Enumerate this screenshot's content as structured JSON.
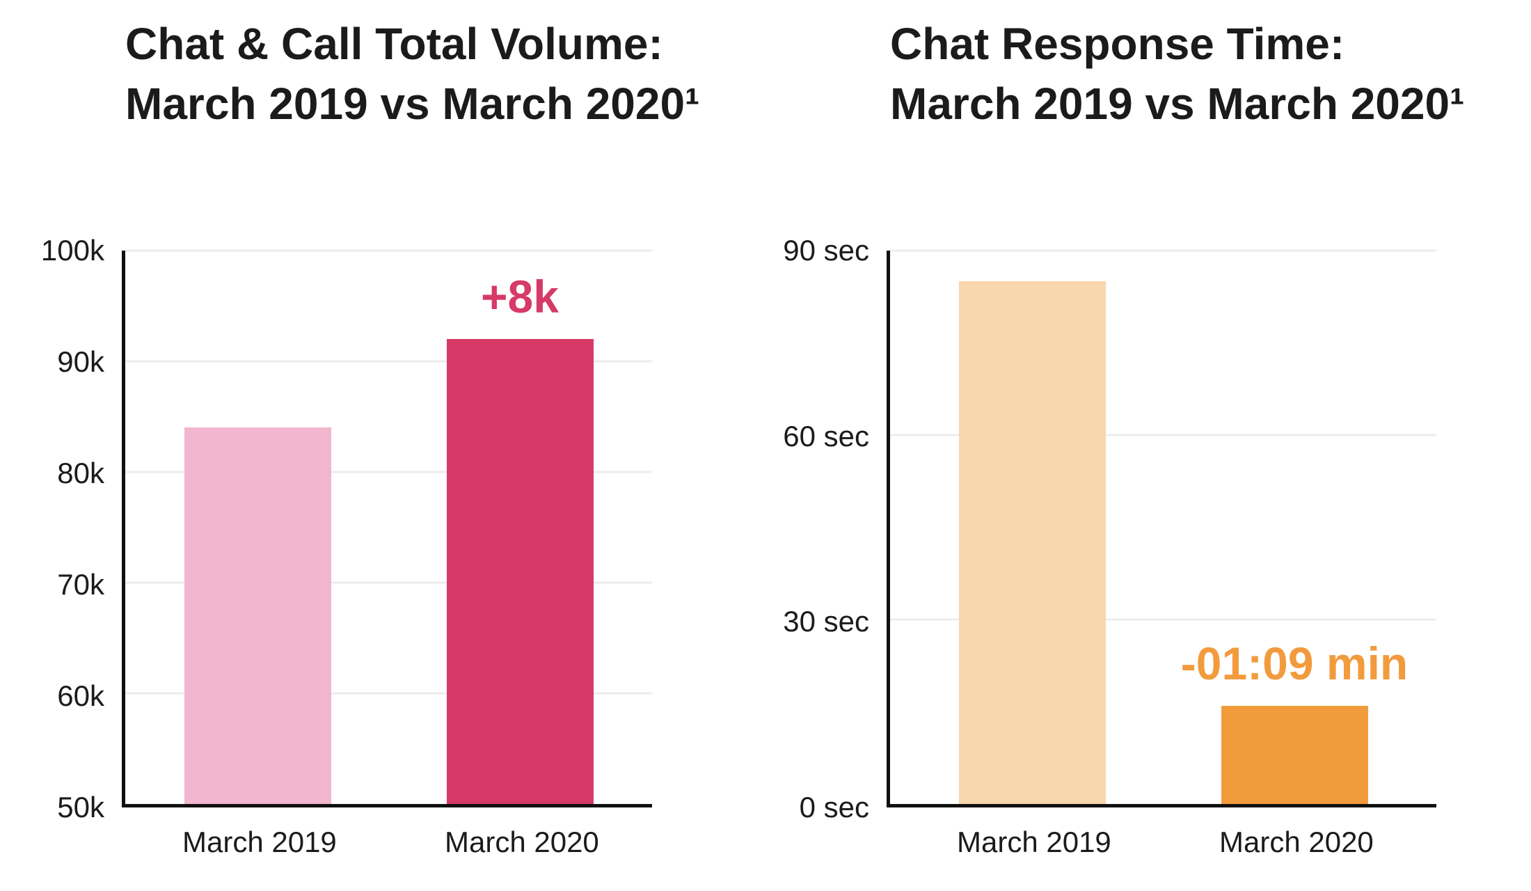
{
  "theme": {
    "background": "#ffffff",
    "text": "#1b1b1b",
    "axis": "#111111",
    "grid": "#ececec"
  },
  "chart_data": [
    {
      "type": "bar",
      "title": "Chat & Call Total Volume: March 2019 vs March 2020¹",
      "title_lines": [
        "Chat & Call Total Volume:",
        "March 2019 vs March 2020¹"
      ],
      "categories": [
        "March 2019",
        "March 2020"
      ],
      "values": [
        84000,
        92000
      ],
      "ylim": [
        50000,
        100000
      ],
      "yticks": [
        {
          "value": 50000,
          "label": "50k"
        },
        {
          "value": 60000,
          "label": "60k"
        },
        {
          "value": 70000,
          "label": "70k"
        },
        {
          "value": 80000,
          "label": "80k"
        },
        {
          "value": 90000,
          "label": "90k"
        },
        {
          "value": 100000,
          "label": "100k"
        }
      ],
      "bar_colors": [
        "#F3B6CF",
        "#D63A67"
      ],
      "annotation": {
        "text": "+8k",
        "bar_index": 1,
        "color": "#D63A67"
      },
      "grid": true,
      "legend": "none",
      "xlabel": "",
      "ylabel": ""
    },
    {
      "type": "bar",
      "title": "Chat Response Time: March 2019 vs March 2020¹",
      "title_lines": [
        "Chat Response Time:",
        "March 2019 vs March 2020¹"
      ],
      "categories": [
        "March 2019",
        "March 2020"
      ],
      "values": [
        85,
        16
      ],
      "ylim": [
        0,
        90
      ],
      "yticks": [
        {
          "value": 0,
          "label": "0 sec"
        },
        {
          "value": 30,
          "label": "30 sec"
        },
        {
          "value": 60,
          "label": "60 sec"
        },
        {
          "value": 90,
          "label": "90 sec"
        }
      ],
      "bar_colors": [
        "#F8D6AE",
        "#F29B3D"
      ],
      "annotation": {
        "text": "-01:09 min",
        "bar_index": 1,
        "color": "#F29B3D"
      },
      "grid": true,
      "legend": "none",
      "xlabel": "",
      "ylabel": ""
    }
  ]
}
